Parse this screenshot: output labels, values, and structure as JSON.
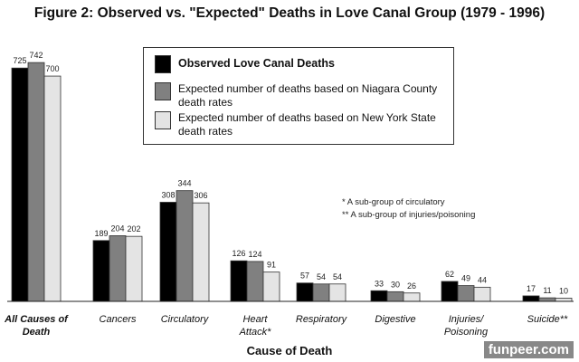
{
  "chart_data": {
    "type": "bar",
    "title": "Figure 2: Observed vs. \"Expected\" Deaths  in Love Canal Group (1979 - 1996)",
    "xlabel": "Cause of Death",
    "ylabel": "",
    "ylim": [
      0,
      760
    ],
    "grid": false,
    "legend_position": "top-center",
    "categories": [
      "All Causes of Death",
      "Cancers",
      "Circulatory",
      "Heart Attack*",
      "Respiratory",
      "Digestive",
      "Injuries/ Poisoning",
      "Suicide**"
    ],
    "series": [
      {
        "name": "Observed Love Canal Deaths",
        "color": "#000000",
        "values": [
          725,
          189,
          308,
          126,
          57,
          33,
          62,
          17
        ]
      },
      {
        "name": "Expected number of deaths based on Niagara County death rates",
        "color": "#808080",
        "values": [
          742,
          204,
          344,
          124,
          54,
          30,
          49,
          11
        ]
      },
      {
        "name": "Expected number of deaths based on New York State death rates",
        "color": "#e4e4e4",
        "values": [
          700,
          202,
          306,
          91,
          54,
          26,
          44,
          10
        ]
      }
    ],
    "annotations": [
      "* A sub-group of circulatory",
      "** A sub-group of injuries/poisoning"
    ]
  },
  "watermark": "funpeer.com"
}
